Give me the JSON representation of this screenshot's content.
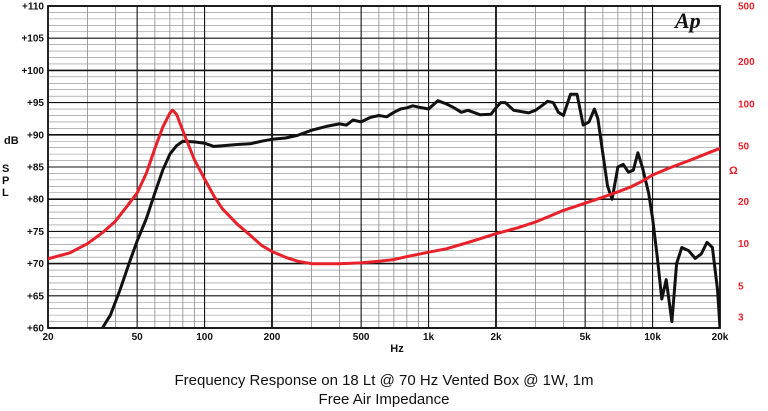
{
  "chart_data": {
    "type": "line",
    "title": "Frequency Response on 18 Lt @ 70 Hz Vented Box @ 1W, 1m",
    "subtitle": "Free Air Impedance",
    "logo": "Ap",
    "xlabel": "Hz",
    "ylabel": "dB SPL",
    "y2label": "Ω",
    "xscale": "log",
    "xlim": [
      20,
      20000
    ],
    "ylim": [
      60,
      110
    ],
    "y2scale": "log",
    "y2lim": [
      2.5,
      500
    ],
    "grid": true,
    "x_ticks": [
      {
        "value": 20,
        "label": "20"
      },
      {
        "value": 50,
        "label": "50"
      },
      {
        "value": 100,
        "label": "100"
      },
      {
        "value": 200,
        "label": "200"
      },
      {
        "value": 500,
        "label": "500"
      },
      {
        "value": 1000,
        "label": "1k"
      },
      {
        "value": 2000,
        "label": "2k"
      },
      {
        "value": 5000,
        "label": "5k"
      },
      {
        "value": 10000,
        "label": "10k"
      },
      {
        "value": 20000,
        "label": "20k"
      }
    ],
    "y_ticks": [
      {
        "value": 110,
        "label": "+110"
      },
      {
        "value": 105,
        "label": "+105"
      },
      {
        "value": 100,
        "label": "+100"
      },
      {
        "value": 95,
        "label": "+95"
      },
      {
        "value": 90,
        "label": "+90"
      },
      {
        "value": 85,
        "label": "+85"
      },
      {
        "value": 80,
        "label": "+80"
      },
      {
        "value": 75,
        "label": "+75"
      },
      {
        "value": 70,
        "label": "+70"
      },
      {
        "value": 65,
        "label": "+65"
      },
      {
        "value": 60,
        "label": "+60"
      }
    ],
    "y2_ticks": [
      {
        "value": 500,
        "label": "500"
      },
      {
        "value": 200,
        "label": "200"
      },
      {
        "value": 100,
        "label": "100"
      },
      {
        "value": 50,
        "label": "50"
      },
      {
        "value": 20,
        "label": "20"
      },
      {
        "value": 10,
        "label": "10"
      },
      {
        "value": 5,
        "label": "5"
      },
      {
        "value": 3,
        "label": "3"
      }
    ],
    "series": [
      {
        "name": "SPL",
        "axis": "left",
        "color": "#111111",
        "points": [
          [
            35,
            60
          ],
          [
            38,
            62
          ],
          [
            42,
            66
          ],
          [
            46,
            70
          ],
          [
            50,
            73.5
          ],
          [
            55,
            77
          ],
          [
            60,
            81
          ],
          [
            65,
            84.5
          ],
          [
            70,
            87
          ],
          [
            75,
            88.3
          ],
          [
            80,
            89
          ],
          [
            90,
            88.9
          ],
          [
            100,
            88.7
          ],
          [
            110,
            88.2
          ],
          [
            120,
            88.3
          ],
          [
            140,
            88.5
          ],
          [
            160,
            88.6
          ],
          [
            180,
            89
          ],
          [
            200,
            89.3
          ],
          [
            230,
            89.5
          ],
          [
            260,
            89.9
          ],
          [
            300,
            90.7
          ],
          [
            350,
            91.3
          ],
          [
            400,
            91.7
          ],
          [
            430,
            91.5
          ],
          [
            460,
            92.3
          ],
          [
            500,
            92
          ],
          [
            550,
            92.7
          ],
          [
            600,
            93
          ],
          [
            650,
            92.8
          ],
          [
            700,
            93.5
          ],
          [
            750,
            94
          ],
          [
            800,
            94.2
          ],
          [
            850,
            94.5
          ],
          [
            900,
            94.3
          ],
          [
            1000,
            94
          ],
          [
            1100,
            95.3
          ],
          [
            1200,
            94.8
          ],
          [
            1300,
            94.2
          ],
          [
            1400,
            93.5
          ],
          [
            1500,
            93.8
          ],
          [
            1700,
            93.1
          ],
          [
            1900,
            93.2
          ],
          [
            2000,
            94.2
          ],
          [
            2100,
            95
          ],
          [
            2200,
            95
          ],
          [
            2400,
            93.8
          ],
          [
            2600,
            93.6
          ],
          [
            2800,
            93.4
          ],
          [
            3000,
            93.8
          ],
          [
            3200,
            94.5
          ],
          [
            3400,
            95.2
          ],
          [
            3600,
            95
          ],
          [
            3800,
            93.5
          ],
          [
            4000,
            93
          ],
          [
            4300,
            96.3
          ],
          [
            4600,
            96.3
          ],
          [
            4900,
            91.5
          ],
          [
            5200,
            92
          ],
          [
            5500,
            94
          ],
          [
            5700,
            92.5
          ],
          [
            6000,
            87
          ],
          [
            6300,
            82
          ],
          [
            6600,
            80
          ],
          [
            7000,
            85
          ],
          [
            7400,
            85.4
          ],
          [
            7800,
            84.2
          ],
          [
            8200,
            84.5
          ],
          [
            8600,
            87.2
          ],
          [
            9000,
            85
          ],
          [
            9600,
            81
          ],
          [
            10000,
            77
          ],
          [
            10500,
            71
          ],
          [
            11000,
            64.5
          ],
          [
            11500,
            67.5
          ],
          [
            12200,
            61
          ],
          [
            12800,
            70
          ],
          [
            13500,
            72.5
          ],
          [
            14500,
            72
          ],
          [
            15500,
            70.8
          ],
          [
            16500,
            71.5
          ],
          [
            17500,
            73.3
          ],
          [
            18500,
            72.5
          ],
          [
            19500,
            66
          ],
          [
            20000,
            60
          ]
        ]
      },
      {
        "name": "Impedance",
        "axis": "right",
        "color": "#e8202a",
        "points": [
          [
            20,
            7.8
          ],
          [
            25,
            8.6
          ],
          [
            30,
            10
          ],
          [
            35,
            12
          ],
          [
            40,
            14.5
          ],
          [
            45,
            18.5
          ],
          [
            50,
            23
          ],
          [
            55,
            32
          ],
          [
            60,
            48
          ],
          [
            65,
            68
          ],
          [
            70,
            86
          ],
          [
            72,
            90
          ],
          [
            75,
            84
          ],
          [
            80,
            64
          ],
          [
            90,
            40
          ],
          [
            100,
            29
          ],
          [
            110,
            22
          ],
          [
            120,
            17.8
          ],
          [
            140,
            13.8
          ],
          [
            160,
            11.5
          ],
          [
            180,
            9.7
          ],
          [
            200,
            8.8
          ],
          [
            230,
            8
          ],
          [
            260,
            7.5
          ],
          [
            300,
            7.2
          ],
          [
            400,
            7.2
          ],
          [
            500,
            7.3
          ],
          [
            600,
            7.5
          ],
          [
            700,
            7.7
          ],
          [
            800,
            8.1
          ],
          [
            900,
            8.4
          ],
          [
            1000,
            8.7
          ],
          [
            1200,
            9.2
          ],
          [
            1500,
            10.2
          ],
          [
            2000,
            11.8
          ],
          [
            2500,
            13
          ],
          [
            3000,
            14.3
          ],
          [
            3500,
            15.8
          ],
          [
            4000,
            17.3
          ],
          [
            5000,
            19.5
          ],
          [
            6000,
            21.5
          ],
          [
            7000,
            23.5
          ],
          [
            8000,
            25.5
          ],
          [
            9000,
            28
          ],
          [
            10000,
            31
          ],
          [
            12000,
            35
          ],
          [
            15000,
            40
          ],
          [
            18000,
            45
          ],
          [
            20000,
            48
          ]
        ]
      }
    ]
  }
}
